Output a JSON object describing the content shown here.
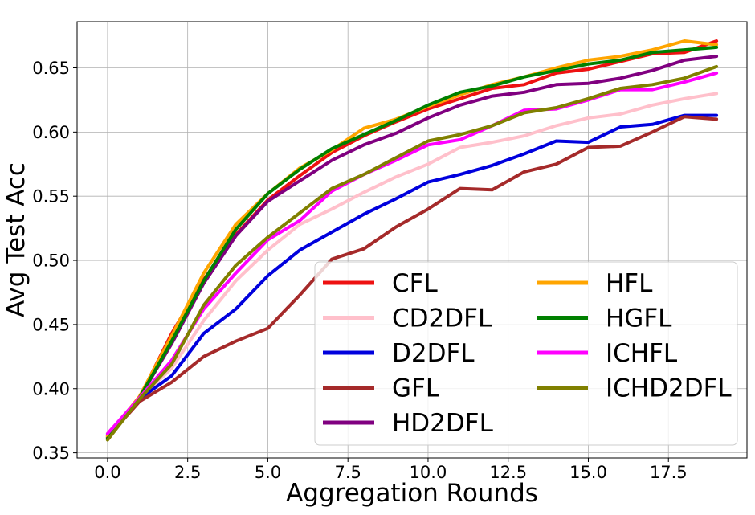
{
  "chart_data": {
    "type": "line",
    "title": "",
    "xlabel": "Aggregation Rounds",
    "ylabel": "Avg Test Acc",
    "xlim": [
      -0.95,
      19.95
    ],
    "ylim": [
      0.346,
      0.686
    ],
    "grid": true,
    "legend_position": "lower-right",
    "legend_columns": 2,
    "xticks": [
      0.0,
      2.5,
      5.0,
      7.5,
      10.0,
      12.5,
      15.0,
      17.5
    ],
    "xtick_labels": [
      "0.0",
      "2.5",
      "5.0",
      "7.5",
      "10.0",
      "12.5",
      "15.0",
      "17.5"
    ],
    "yticks": [
      0.35,
      0.4,
      0.45,
      0.5,
      0.55,
      0.6,
      0.65
    ],
    "ytick_labels": [
      "0.35",
      "0.40",
      "0.45",
      "0.50",
      "0.55",
      "0.60",
      "0.65"
    ],
    "x": [
      0,
      1,
      2,
      3,
      4,
      5,
      6,
      7,
      8,
      9,
      10,
      11,
      12,
      13,
      14,
      15,
      16,
      17,
      18,
      19
    ],
    "series": [
      {
        "name": "CFL",
        "color": "#ee1111",
        "values": [
          0.363,
          0.393,
          0.443,
          0.485,
          0.52,
          0.547,
          0.566,
          0.584,
          0.597,
          0.608,
          0.618,
          0.626,
          0.634,
          0.637,
          0.646,
          0.649,
          0.655,
          0.661,
          0.662,
          0.671
        ]
      },
      {
        "name": "CD2DFL",
        "color": "#ffc0cb",
        "values": [
          0.362,
          0.392,
          0.416,
          0.453,
          0.484,
          0.508,
          0.528,
          0.54,
          0.553,
          0.565,
          0.575,
          0.588,
          0.592,
          0.597,
          0.605,
          0.611,
          0.614,
          0.621,
          0.626,
          0.63
        ]
      },
      {
        "name": "D2DFL",
        "color": "#0000dd",
        "values": [
          0.364,
          0.392,
          0.41,
          0.443,
          0.462,
          0.488,
          0.508,
          0.522,
          0.536,
          0.548,
          0.561,
          0.567,
          0.574,
          0.583,
          0.593,
          0.592,
          0.604,
          0.606,
          0.613,
          0.613
        ]
      },
      {
        "name": "GFL",
        "color": "#a52a2a",
        "values": [
          0.362,
          0.39,
          0.405,
          0.425,
          0.437,
          0.447,
          0.473,
          0.501,
          0.509,
          0.526,
          0.54,
          0.556,
          0.555,
          0.569,
          0.575,
          0.588,
          0.589,
          0.6,
          0.612,
          0.61
        ]
      },
      {
        "name": "HD2DFL",
        "color": "#800080",
        "values": [
          0.361,
          0.393,
          0.435,
          0.482,
          0.519,
          0.546,
          0.562,
          0.578,
          0.59,
          0.599,
          0.611,
          0.621,
          0.628,
          0.631,
          0.637,
          0.638,
          0.642,
          0.648,
          0.656,
          0.659
        ]
      },
      {
        "name": "HFL",
        "color": "#ffa500",
        "values": [
          0.363,
          0.394,
          0.441,
          0.49,
          0.528,
          0.552,
          0.572,
          0.586,
          0.603,
          0.61,
          0.62,
          0.629,
          0.637,
          0.643,
          0.65,
          0.656,
          0.659,
          0.664,
          0.671,
          0.668
        ]
      },
      {
        "name": "HGFL",
        "color": "#008000",
        "values": [
          0.361,
          0.393,
          0.437,
          0.484,
          0.524,
          0.552,
          0.571,
          0.587,
          0.598,
          0.609,
          0.621,
          0.631,
          0.636,
          0.643,
          0.648,
          0.653,
          0.656,
          0.662,
          0.664,
          0.666
        ]
      },
      {
        "name": "ICHFL",
        "color": "#ff00ff",
        "values": [
          0.365,
          0.393,
          0.422,
          0.462,
          0.49,
          0.516,
          0.531,
          0.554,
          0.567,
          0.578,
          0.59,
          0.594,
          0.605,
          0.617,
          0.618,
          0.625,
          0.633,
          0.633,
          0.639,
          0.646
        ]
      },
      {
        "name": "ICHD2DFL",
        "color": "#808000",
        "values": [
          0.36,
          0.392,
          0.419,
          0.465,
          0.496,
          0.518,
          0.537,
          0.556,
          0.567,
          0.58,
          0.593,
          0.598,
          0.605,
          0.615,
          0.619,
          0.626,
          0.634,
          0.637,
          0.642,
          0.651
        ]
      }
    ]
  }
}
